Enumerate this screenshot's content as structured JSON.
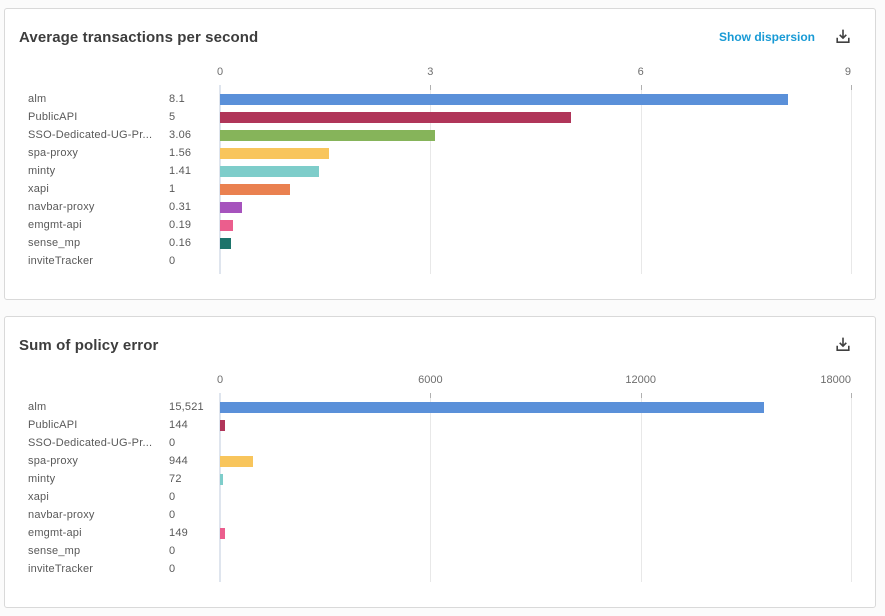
{
  "ui": {
    "colors": {
      "page_background": "#fbfbfb",
      "card_background": "#ffffff",
      "card_border": "#d9d9d9",
      "title_text": "#3d3d3d",
      "label_text": "#595959",
      "tick_text": "#6e6e6e",
      "link_accent": "#189ad5",
      "icon": "#404040",
      "gridline": "#e8e8e8",
      "axis_baseline": "#dfe5ee"
    },
    "icons": {
      "download": "download-icon"
    }
  },
  "chart_data": [
    {
      "type": "bar",
      "orientation": "horizontal",
      "title": "Average transactions per second",
      "action_label": "Show dispersion",
      "categories": [
        "alm",
        "PublicAPI",
        "SSO-Dedicated-UG-Pr...",
        "spa-proxy",
        "minty",
        "xapi",
        "navbar-proxy",
        "emgmt-api",
        "sense_mp",
        "inviteTracker"
      ],
      "values": [
        8.1,
        5,
        3.06,
        1.56,
        1.41,
        1,
        0.31,
        0.19,
        0.16,
        0
      ],
      "value_labels": [
        "8.1",
        "5",
        "3.06",
        "1.56",
        "1.41",
        "1",
        "0.31",
        "0.19",
        "0.16",
        "0"
      ],
      "xlim": [
        0,
        9
      ],
      "x_ticks": [
        0,
        3,
        6,
        9
      ],
      "x_tick_labels": [
        "0",
        "3",
        "6",
        "9"
      ],
      "bar_colors": [
        "#5a90d9",
        "#b03559",
        "#86b45a",
        "#f8c55c",
        "#7ecdca",
        "#ea8150",
        "#a653bd",
        "#eb5e8d",
        "#1d746b",
        "#bbbbbb"
      ],
      "grid": true,
      "legend": false
    },
    {
      "type": "bar",
      "orientation": "horizontal",
      "title": "Sum of policy error",
      "action_label": "",
      "categories": [
        "alm",
        "PublicAPI",
        "SSO-Dedicated-UG-Pr...",
        "spa-proxy",
        "minty",
        "xapi",
        "navbar-proxy",
        "emgmt-api",
        "sense_mp",
        "inviteTracker"
      ],
      "values": [
        15521,
        144,
        0,
        944,
        72,
        0,
        0,
        149,
        0,
        0
      ],
      "value_labels": [
        "15,521",
        "144",
        "0",
        "944",
        "72",
        "0",
        "0",
        "149",
        "0",
        "0"
      ],
      "xlim": [
        0,
        18000
      ],
      "x_ticks": [
        0,
        6000,
        12000,
        18000
      ],
      "x_tick_labels": [
        "0",
        "6000",
        "12000",
        "18000"
      ],
      "bar_colors": [
        "#5a90d9",
        "#b03559",
        "#86b45a",
        "#f8c55c",
        "#7ecdca",
        "#ea8150",
        "#a653bd",
        "#eb5e8d",
        "#1d746b",
        "#bbbbbb"
      ],
      "grid": true,
      "legend": false
    }
  ]
}
